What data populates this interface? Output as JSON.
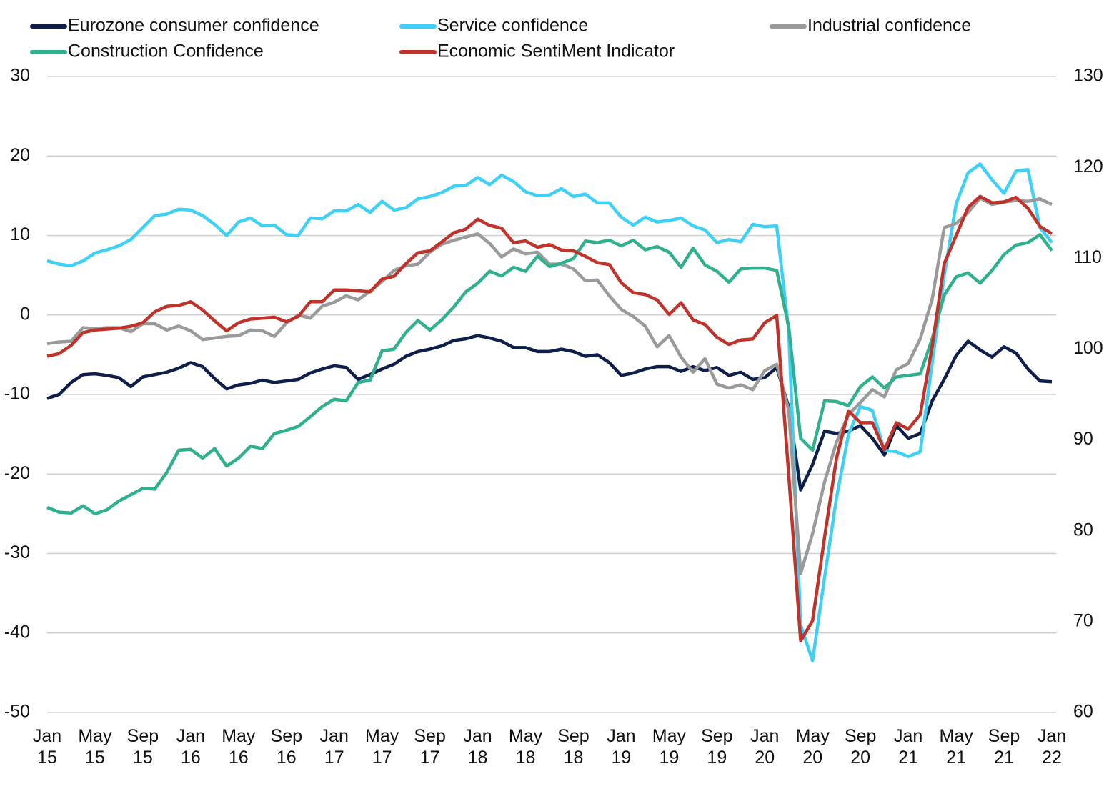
{
  "chart_data": {
    "type": "line",
    "categories": [
      "Jan 15",
      null,
      null,
      null,
      "May 15",
      null,
      null,
      null,
      "Sep 15",
      null,
      null,
      null,
      "Jan 16",
      null,
      null,
      null,
      "May 16",
      null,
      null,
      null,
      "Sep 16",
      null,
      null,
      null,
      "Jan 17",
      null,
      null,
      null,
      "May 17",
      null,
      null,
      null,
      "Sep 17",
      null,
      null,
      null,
      "Jan 18",
      null,
      null,
      null,
      "May 18",
      null,
      null,
      null,
      "Sep 18",
      null,
      null,
      null,
      "Jan 19",
      null,
      null,
      null,
      "May 19",
      null,
      null,
      null,
      "Sep 19",
      null,
      null,
      null,
      "Jan 20",
      null,
      null,
      null,
      "May 20",
      null,
      null,
      null,
      "Sep 20",
      null,
      null,
      null,
      "Jan 21",
      null,
      null,
      null,
      "May 21",
      null,
      null,
      null,
      "Sep 21",
      null,
      null,
      null,
      "Jan 22"
    ],
    "ylim": [
      -50,
      30
    ],
    "yticks": [
      -50,
      -40,
      -30,
      -20,
      -10,
      0,
      10,
      20,
      30
    ],
    "y2lim": [
      60,
      130
    ],
    "y2ticks": [
      60,
      70,
      80,
      90,
      100,
      110,
      120,
      130
    ],
    "grid": true,
    "series": [
      {
        "name": "Eurozone consumer confidence",
        "color": "#0f1f4b",
        "values": [
          -10.5,
          -10,
          -8.5,
          -7.5,
          -7.4,
          -7.6,
          -7.9,
          -9.0,
          -7.8,
          -7.5,
          -7.2,
          -6.7,
          -6.0,
          -6.5,
          -8.0,
          -9.3,
          -8.8,
          -8.6,
          -8.2,
          -8.5,
          -8.3,
          -8.1,
          -7.3,
          -6.8,
          -6.4,
          -6.6,
          -8.1,
          -7.5,
          -6.8,
          -6.2,
          -5.2,
          -4.6,
          -4.3,
          -3.9,
          -3.2,
          -3.0,
          -2.6,
          -2.9,
          -3.3,
          -4.1,
          -4.1,
          -4.6,
          -4.6,
          -4.3,
          -4.6,
          -5.2,
          -5.0,
          -6.0,
          -7.6,
          -7.3,
          -6.8,
          -6.5,
          -6.5,
          -7.1,
          -6.5,
          -7.0,
          -6.6,
          -7.6,
          -7.2,
          -8.1,
          -7.9,
          -6.6,
          -11.6,
          -22.0,
          -18.8,
          -14.6,
          -14.9,
          -14.6,
          -13.9,
          -15.5,
          -17.6,
          -13.9,
          -15.5,
          -14.9,
          -10.8,
          -8.1,
          -5.1,
          -3.3,
          -4.4,
          -5.3,
          -4.0,
          -4.8,
          -6.8,
          -8.3,
          -8.4
        ]
      },
      {
        "name": "Service confidence",
        "color": "#3fd0f5",
        "values": [
          6.8,
          6.4,
          6.2,
          6.8,
          7.8,
          8.2,
          8.7,
          9.5,
          11.0,
          12.5,
          12.7,
          13.3,
          13.2,
          12.5,
          11.4,
          10.0,
          11.7,
          12.2,
          11.2,
          11.3,
          10.1,
          10.0,
          12.2,
          12.1,
          13.1,
          13.1,
          13.9,
          12.9,
          14.3,
          13.2,
          13.5,
          14.6,
          14.9,
          15.4,
          16.2,
          16.3,
          17.3,
          16.4,
          17.6,
          16.8,
          15.5,
          15.0,
          15.1,
          15.9,
          14.9,
          15.2,
          14.1,
          14.1,
          12.3,
          11.3,
          12.3,
          11.7,
          11.9,
          12.2,
          11.2,
          10.7,
          9.1,
          9.5,
          9.2,
          11.4,
          11.1,
          11.2,
          -2,
          -39,
          -43.5,
          -33,
          -23,
          -15,
          -11.5,
          -12,
          -17,
          -17.2,
          -17.8,
          -17.2,
          -6,
          5,
          14,
          17.9,
          19,
          17,
          15.3,
          18.1,
          18.3,
          11,
          9.1
        ]
      },
      {
        "name": "Industrial confidence",
        "color": "#9a9a9a",
        "values": [
          -3.6,
          -3.4,
          -3.3,
          -1.6,
          -1.7,
          -1.6,
          -1.6,
          -2.1,
          -1.1,
          -1.1,
          -1.9,
          -1.4,
          -2.0,
          -3.1,
          -2.9,
          -2.7,
          -2.6,
          -1.9,
          -2.0,
          -2.7,
          -1.0,
          0.0,
          -0.4,
          1.1,
          1.6,
          2.4,
          1.9,
          3.0,
          4.2,
          5.6,
          6.2,
          6.4,
          7.9,
          8.9,
          9.4,
          9.8,
          10.2,
          9.0,
          7.3,
          8.3,
          7.7,
          7.9,
          6.4,
          6.4,
          5.8,
          4.3,
          4.4,
          2.4,
          0.7,
          -0.2,
          -1.4,
          -4.0,
          -2.6,
          -5.3,
          -7.2,
          -5.5,
          -8.7,
          -9.2,
          -8.8,
          -9.4,
          -7.0,
          -6.2,
          -12,
          -32.5,
          -27.5,
          -21,
          -16,
          -12.5,
          -11,
          -9.4,
          -10.3,
          -6.9,
          -6.1,
          -3,
          2,
          11,
          11.5,
          12.9,
          14.7,
          13.9,
          14.2,
          14.4,
          14.3,
          14.6,
          13.9
        ]
      },
      {
        "name": "Construction Confidence",
        "color": "#2fb08f",
        "values": [
          -24.2,
          -24.8,
          -24.9,
          -24.0,
          -25.0,
          -24.5,
          -23.4,
          -22.6,
          -21.8,
          -21.9,
          -19.8,
          -17.0,
          -16.9,
          -18.0,
          -16.8,
          -19.0,
          -18.0,
          -16.5,
          -16.8,
          -14.9,
          -14.5,
          -14.0,
          -12.8,
          -11.5,
          -10.6,
          -10.8,
          -8.5,
          -8.2,
          -4.5,
          -4.3,
          -2.2,
          -0.7,
          -1.9,
          -0.6,
          1.0,
          2.9,
          4.0,
          5.5,
          4.9,
          6.0,
          5.5,
          7.4,
          6.1,
          6.5,
          7.1,
          9.3,
          9.1,
          9.4,
          8.7,
          9.4,
          8.2,
          8.6,
          7.9,
          6.0,
          8.4,
          6.3,
          5.5,
          4.1,
          5.8,
          5.9,
          5.9,
          5.6,
          -1.5,
          -15.5,
          -17,
          -10.8,
          -10.9,
          -11.4,
          -9.0,
          -7.8,
          -9.2,
          -7.8,
          -7.6,
          -7.4,
          -3,
          2.5,
          4.8,
          5.3,
          4.0,
          5.6,
          7.6,
          8.8,
          9.1,
          10.1,
          8.1
        ]
      },
      {
        "name": "Economic SentiMent Indicator",
        "color": "#c0332b",
        "axis": "y2",
        "values": [
          99.2,
          99.5,
          100.4,
          101.8,
          102.1,
          102.2,
          102.3,
          102.5,
          102.9,
          104.1,
          104.7,
          104.8,
          105.2,
          104.3,
          103.1,
          102.0,
          102.9,
          103.3,
          103.4,
          103.5,
          103.0,
          103.6,
          105.2,
          105.2,
          106.5,
          106.5,
          106.4,
          106.3,
          107.7,
          108.0,
          109.4,
          110.6,
          110.8,
          111.8,
          112.8,
          113.2,
          114.3,
          113.6,
          113.3,
          111.7,
          111.9,
          111.2,
          111.5,
          110.9,
          110.8,
          110.2,
          109.5,
          109.3,
          107.3,
          106.2,
          106.0,
          105.4,
          103.8,
          105.1,
          103.2,
          102.7,
          101.3,
          100.5,
          101.0,
          101.1,
          102.9,
          103.7,
          86.2,
          67.9,
          70.1,
          79.3,
          88.0,
          93.2,
          91.9,
          91.9,
          88.9,
          91.9,
          91.2,
          92.8,
          100.3,
          109.4,
          112.5,
          115.6,
          116.8,
          116.1,
          116.2,
          116.7,
          115.5,
          113.5,
          112.7
        ]
      }
    ]
  }
}
